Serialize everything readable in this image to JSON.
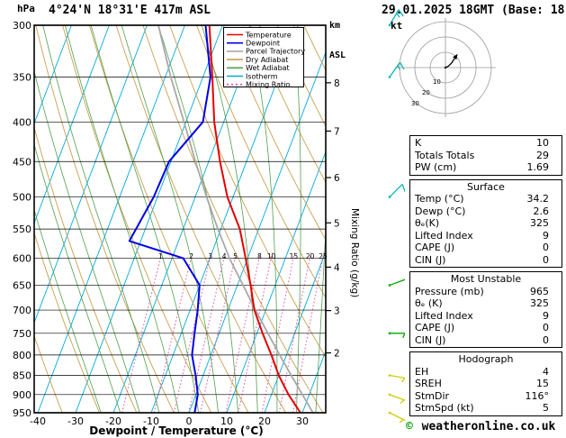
{
  "header": {
    "pressure_unit": "hPa",
    "station": "4°24'N 18°31'E 417m ASL",
    "alt_line1": "km",
    "alt_line2": "ASL",
    "datetime": "29.01.2025 18GMT (Base: 18)",
    "hodograph_unit": "kt"
  },
  "axes": {
    "xlabel": "Dewpoint / Temperature (°C)",
    "mixing_label": "Mixing Ratio (g/kg)",
    "pressure_ticks": [
      300,
      350,
      400,
      450,
      500,
      550,
      600,
      650,
      700,
      750,
      800,
      850,
      900,
      950
    ],
    "temp_ticks": [
      -40,
      -30,
      -20,
      -10,
      0,
      10,
      20,
      30
    ],
    "km_ticks": [
      {
        "km": 2,
        "p": 795
      },
      {
        "km": 3,
        "p": 701
      },
      {
        "km": 4,
        "p": 616
      },
      {
        "km": 5,
        "p": 540
      },
      {
        "km": 6,
        "p": 472
      },
      {
        "km": 7,
        "p": 411
      },
      {
        "km": 8,
        "p": 356
      }
    ]
  },
  "legend": [
    {
      "label": "Temperature",
      "color": "#E60000",
      "dash": null
    },
    {
      "label": "Dewpoint",
      "color": "#0000E6",
      "dash": null
    },
    {
      "label": "Parcel Trajectory",
      "color": "#A8A8A8",
      "dash": null
    },
    {
      "label": "Dry Adiabat",
      "color": "#C8A050",
      "dash": null
    },
    {
      "label": "Wet Adiabat",
      "color": "#50A050",
      "dash": null
    },
    {
      "label": "Isotherm",
      "color": "#00AADC",
      "dash": null
    },
    {
      "label": "Mixing Ratio",
      "color": "#E64CA6",
      "dash": "2,3"
    }
  ],
  "colors": {
    "temperature": "#E60000",
    "dewpoint": "#0000E6",
    "parcel": "#A8A8A8",
    "dry_adiabat": "#C8A050",
    "wet_adiabat": "#50A050",
    "isotherm": "#00AADC",
    "mixing_ratio": "#E64CA6",
    "pressure_line": "#000000",
    "barb_high": "#00B8B8",
    "barb_mid": "#00AA00",
    "barb_low": "#CCCC00"
  },
  "chart_data": {
    "type": "skewt-log-p",
    "station": "4°24'N 18°31'E 417m ASL",
    "datetime": "29.01.2025 18GMT (Base: 18)",
    "pressure_axis_hpa": [
      300,
      950
    ],
    "temp_axis_c": [
      -40,
      35
    ],
    "km_axis": [
      2,
      8
    ],
    "isotherm_step_c": 10,
    "dry_adiabat_step_c": 10,
    "wet_adiabat_step_c": 5,
    "mixing_ratio_lines_gkg": [
      1,
      2,
      3,
      4,
      5,
      8,
      10,
      15,
      20,
      25
    ],
    "temperature_profile_p_t": [
      [
        950,
        29.5
      ],
      [
        900,
        24.5
      ],
      [
        850,
        20
      ],
      [
        800,
        16
      ],
      [
        750,
        11.5
      ],
      [
        700,
        7
      ],
      [
        650,
        3.5
      ],
      [
        600,
        -0.5
      ],
      [
        550,
        -5
      ],
      [
        500,
        -11.5
      ],
      [
        450,
        -17
      ],
      [
        400,
        -22.5
      ],
      [
        350,
        -27.5
      ],
      [
        300,
        -33.5
      ]
    ],
    "dewpoint_profile_p_t": [
      [
        950,
        1.5
      ],
      [
        900,
        0.5
      ],
      [
        850,
        -2
      ],
      [
        800,
        -5
      ],
      [
        750,
        -6.5
      ],
      [
        700,
        -8
      ],
      [
        650,
        -10
      ],
      [
        600,
        -17
      ],
      [
        570,
        -33
      ],
      [
        500,
        -31
      ],
      [
        450,
        -30.5
      ],
      [
        400,
        -25.5
      ],
      [
        350,
        -28
      ],
      [
        300,
        -34.5
      ]
    ],
    "parcel_profile_p_t": [
      [
        950,
        32.8
      ],
      [
        900,
        28.2
      ],
      [
        850,
        23.3
      ],
      [
        800,
        18.2
      ],
      [
        750,
        12.9
      ],
      [
        700,
        7.3
      ],
      [
        650,
        1.5
      ],
      [
        600,
        -4.8
      ],
      [
        550,
        -10.8
      ],
      [
        500,
        -17
      ],
      [
        450,
        -23.5
      ],
      [
        400,
        -30.5
      ],
      [
        350,
        -38.5
      ],
      [
        300,
        -47
      ]
    ],
    "wind_barbs": [
      {
        "p": 300,
        "dir": 30,
        "speed": 15,
        "color_key": "barb_high"
      },
      {
        "p": 350,
        "dir": 35,
        "speed": 15,
        "color_key": "barb_high"
      },
      {
        "p": 500,
        "dir": 45,
        "speed": 10,
        "color_key": "barb_high"
      },
      {
        "p": 650,
        "dir": 70,
        "speed": 10,
        "color_key": "barb_mid"
      },
      {
        "p": 750,
        "dir": 90,
        "speed": 5,
        "color_key": "barb_mid"
      },
      {
        "p": 850,
        "dir": 100,
        "speed": 5,
        "color_key": "barb_low"
      },
      {
        "p": 900,
        "dir": 110,
        "speed": 5,
        "color_key": "barb_low"
      },
      {
        "p": 950,
        "dir": 116,
        "speed": 5,
        "color_key": "barb_low"
      }
    ],
    "hodograph": {
      "rings_kt": [
        10,
        20,
        30
      ],
      "trace_uv_kt": [
        [
          0,
          0
        ],
        [
          2,
          1
        ],
        [
          4,
          3
        ],
        [
          6,
          6
        ]
      ]
    }
  },
  "stats": {
    "tables": [
      {
        "title": "",
        "rows": [
          [
            "K",
            "10"
          ],
          [
            "Totals Totals",
            "29"
          ],
          [
            "PW (cm)",
            "1.69"
          ]
        ]
      },
      {
        "title": "Surface",
        "rows": [
          [
            "Temp (°C)",
            "34.2"
          ],
          [
            "Dewp (°C)",
            "2.6"
          ],
          [
            "θₑ(K)",
            "325"
          ],
          [
            "Lifted Index",
            "9"
          ],
          [
            "CAPE (J)",
            "0"
          ],
          [
            "CIN (J)",
            "0"
          ]
        ]
      },
      {
        "title": "Most Unstable",
        "rows": [
          [
            "Pressure (mb)",
            "965"
          ],
          [
            "θₑ (K)",
            "325"
          ],
          [
            "Lifted Index",
            "9"
          ],
          [
            "CAPE (J)",
            "0"
          ],
          [
            "CIN (J)",
            "0"
          ]
        ]
      },
      {
        "title": "Hodograph",
        "rows": [
          [
            "EH",
            "4"
          ],
          [
            "SREH",
            "15"
          ],
          [
            "StmDir",
            "116°"
          ],
          [
            "StmSpd (kt)",
            "5"
          ]
        ]
      }
    ]
  },
  "footer": {
    "symbol": "©",
    "text": " weatheronline.co.uk"
  }
}
